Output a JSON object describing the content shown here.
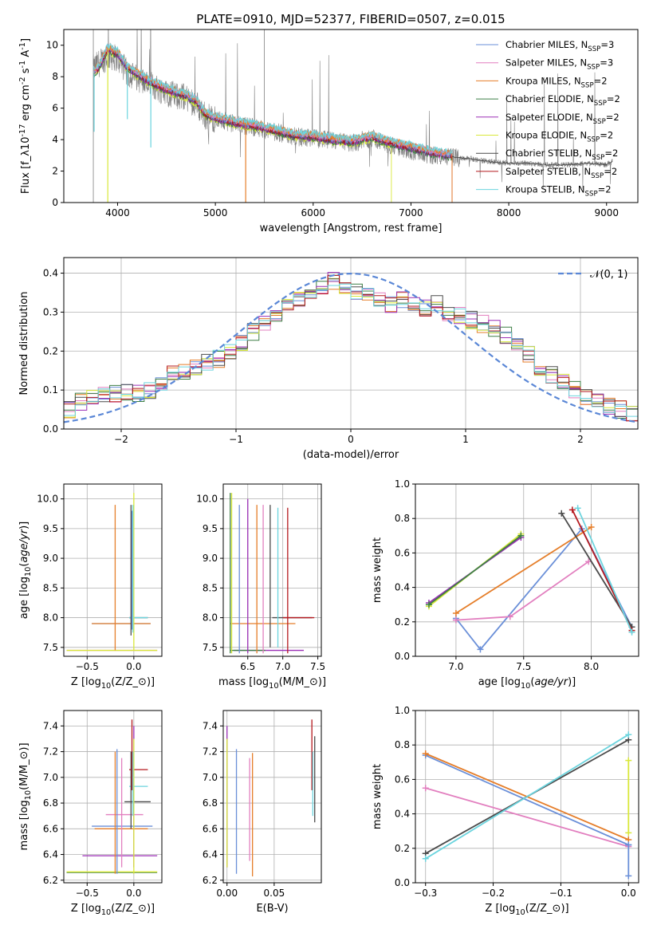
{
  "figure": {
    "title": "PLATE=0910, MJD=52377, FIBERID=0507, z=0.015"
  },
  "colors": {
    "chabrier_miles": "#6a8fd8",
    "salpeter_miles": "#e27fbf",
    "kroupa_miles": "#e57e2a",
    "chabrier_elodie": "#3e7f46",
    "salpeter_elodie": "#9b2fb6",
    "kroupa_elodie": "#d9e83a",
    "chabrier_stelib": "#4b4b4b",
    "salpeter_stelib": "#b5191e",
    "kroupa_stelib": "#6cd4de",
    "data": "#808080",
    "grid": "#b0b0b0"
  },
  "chart_data": [
    {
      "type": "line",
      "panel": "spectrum",
      "xlabel": "wavelength [Angstrom, rest frame]",
      "ylabel": "Flux [f$_\\lambda$10$^{-17}$ erg cm$^{-2}$ s$^{-1}$ A$^{-1}$]",
      "xlim": [
        3450,
        9320
      ],
      "ylim": [
        0,
        11
      ],
      "xticks": [
        4000,
        5000,
        6000,
        7000,
        8000,
        9000
      ],
      "yticks": [
        0,
        2,
        4,
        6,
        8,
        10
      ],
      "grid": false,
      "legend_position": "top-right",
      "legend": [
        {
          "label": "Chabrier MILES, N$_{SSP}$=3",
          "color": "#6a8fd8"
        },
        {
          "label": "Salpeter MILES, N$_{SSP}$=3",
          "color": "#e27fbf"
        },
        {
          "label": "Kroupa MILES, N$_{SSP}$=2",
          "color": "#e57e2a"
        },
        {
          "label": "Chabrier ELODIE, N$_{SSP}$=2",
          "color": "#3e7f46"
        },
        {
          "label": "Salpeter ELODIE, N$_{SSP}$=2",
          "color": "#9b2fb6"
        },
        {
          "label": "Kroupa ELODIE, N$_{SSP}$=2",
          "color": "#d9e83a"
        },
        {
          "label": "Chabrier STELIB, N$_{SSP}$=2",
          "color": "#4b4b4b"
        },
        {
          "label": "Salpeter STELIB, N$_{SSP}$=2",
          "color": "#b5191e"
        },
        {
          "label": "Kroupa STELIB, N$_{SSP}$=2",
          "color": "#6cd4de"
        }
      ],
      "data_continuum": {
        "x": [
          3750,
          3800,
          3900,
          4000,
          4100,
          4200,
          4300,
          4400,
          4500,
          4600,
          4700,
          4800,
          4900,
          5000,
          5200,
          5400,
          5600,
          5800,
          6000,
          6200,
          6400,
          6600,
          6800,
          7000,
          7200,
          7400,
          7600,
          7800,
          8000,
          8200,
          8400,
          8600,
          8800,
          9000,
          9060
        ],
        "y": [
          8.5,
          8.8,
          9.3,
          9.2,
          8.2,
          7.9,
          7.6,
          7.3,
          7.0,
          6.8,
          6.7,
          6.3,
          5.5,
          5.3,
          5.0,
          4.8,
          4.5,
          4.2,
          4.1,
          3.9,
          3.8,
          4.1,
          3.6,
          3.3,
          3.0,
          2.9,
          2.8,
          2.6,
          2.5,
          2.5,
          2.4,
          2.4,
          2.5,
          2.4,
          2.6
        ]
      },
      "model_continuum": {
        "x": [
          3750,
          3800,
          3900,
          4000,
          4100,
          4200,
          4300,
          4400,
          4500,
          4600,
          4700,
          4800,
          4900,
          5000,
          5200,
          5400,
          5600,
          5800,
          6000,
          6200,
          6400,
          6600,
          6800,
          7000,
          7200,
          7400
        ],
        "y": [
          8.3,
          8.5,
          9.8,
          9.5,
          8.6,
          8.2,
          7.8,
          7.5,
          7.2,
          7.0,
          6.8,
          6.5,
          5.6,
          5.4,
          5.1,
          4.9,
          4.6,
          4.3,
          4.2,
          4.0,
          3.9,
          4.2,
          3.8,
          3.5,
          3.2,
          3.0
        ]
      },
      "model_cutoffs": [
        {
          "series": "kroupa_miles",
          "x_end": 7420
        },
        {
          "series": "salpeter_stelib",
          "x_end": 7420
        },
        {
          "series": "kroupa_elodie",
          "x_end": 6800
        }
      ],
      "model_dips": [
        {
          "series": "kroupa_stelib",
          "x": 3760,
          "y": 4.5
        },
        {
          "series": "kroupa_stelib",
          "x": 4340,
          "y": 3.5
        },
        {
          "series": "kroupa_elodie",
          "x": 3900,
          "y": 0
        },
        {
          "series": "kroupa_miles",
          "x": 5310,
          "y": 0
        },
        {
          "series": "kroupa_stelib",
          "x": 4100,
          "y": 5.3
        }
      ]
    },
    {
      "type": "histogram",
      "panel": "residuals",
      "xlabel": "(data-model)/error",
      "ylabel": "Normed distribution",
      "xlim": [
        -2.5,
        2.5
      ],
      "ylim": [
        0,
        0.44
      ],
      "xticks": [
        -2,
        -1,
        0,
        1,
        2
      ],
      "yticks": [
        0.0,
        0.1,
        0.2,
        0.3,
        0.4
      ],
      "grid": true,
      "legend_position": "top-right",
      "legend": [
        {
          "label": "$\\mathcal{N}(0, 1)$",
          "color": "#5a87d6"
        }
      ],
      "bins": {
        "start": -2.5,
        "width": 0.1,
        "count": 50
      },
      "base_hist": [
        0.05,
        0.07,
        0.08,
        0.085,
        0.09,
        0.095,
        0.09,
        0.1,
        0.12,
        0.14,
        0.15,
        0.16,
        0.17,
        0.18,
        0.2,
        0.22,
        0.25,
        0.27,
        0.29,
        0.31,
        0.33,
        0.34,
        0.36,
        0.38,
        0.37,
        0.35,
        0.34,
        0.33,
        0.32,
        0.33,
        0.32,
        0.31,
        0.32,
        0.3,
        0.29,
        0.28,
        0.27,
        0.26,
        0.24,
        0.22,
        0.19,
        0.16,
        0.14,
        0.12,
        0.1,
        0.08,
        0.07,
        0.06,
        0.05,
        0.04
      ],
      "reference_curve": "gaussian N(0,1)"
    },
    {
      "type": "errorbar",
      "panel": "age-vs-Z",
      "xlabel": "Z [log$_{10}$($Z/Z_\\odot$)]",
      "ylabel": "age  [log$_{10}$($age/yr$)]",
      "xlim": [
        -0.75,
        0.3
      ],
      "ylim": [
        7.35,
        10.25
      ],
      "xticks": [
        -0.5,
        0.0
      ],
      "yticks": [
        7.5,
        8.0,
        8.5,
        9.0,
        9.5,
        10.0
      ],
      "grid": true,
      "hbars": [
        {
          "series": "chabrier_miles",
          "y": 7.9,
          "x0": -0.45,
          "x1": 0.18
        },
        {
          "series": "kroupa_miles",
          "y": 7.9,
          "x0": -0.45,
          "x1": 0.18
        },
        {
          "series": "salpeter_miles",
          "y": 7.45,
          "x0": -0.72,
          "x1": 0.25
        },
        {
          "series": "kroupa_elodie",
          "y": 7.45,
          "x0": -0.72,
          "x1": 0.25
        },
        {
          "series": "chabrier_stelib",
          "y": 8.0,
          "x0": -0.05,
          "x1": 0.15
        },
        {
          "series": "kroupa_stelib",
          "y": 8.0,
          "x0": -0.05,
          "x1": 0.15
        }
      ],
      "vbars": [
        {
          "series": "kroupa_miles",
          "x": -0.2,
          "y0": 7.45,
          "y1": 9.9
        },
        {
          "series": "chabrier_miles",
          "x": -0.02,
          "y0": 7.8,
          "y1": 9.8
        },
        {
          "series": "chabrier_stelib",
          "x": -0.03,
          "y0": 7.7,
          "y1": 9.9
        },
        {
          "series": "kroupa_elodie",
          "x": 0.0,
          "y0": 7.45,
          "y1": 10.1
        },
        {
          "series": "kroupa_stelib",
          "x": -0.01,
          "y0": 7.75,
          "y1": 9.9
        }
      ]
    },
    {
      "type": "errorbar",
      "panel": "age-vs-mass",
      "xlabel": "mass [log$_{10}$($M/M_\\odot$)]",
      "ylabel": "",
      "xlim": [
        6.15,
        7.55
      ],
      "ylim": [
        7.35,
        10.25
      ],
      "xticks": [
        6.5,
        7.0,
        7.5
      ],
      "yticks": [
        7.5,
        8.0,
        8.5,
        9.0,
        9.5,
        10.0
      ],
      "grid": true,
      "hbars": [
        {
          "series": "kroupa_miles",
          "y": 7.9,
          "x0": 6.25,
          "x1": 7.18
        },
        {
          "series": "chabrier_stelib",
          "y": 8.0,
          "x0": 6.85,
          "x1": 7.42
        },
        {
          "series": "salpeter_stelib",
          "y": 8.0,
          "x0": 7.0,
          "x1": 7.45
        },
        {
          "series": "salpeter_elodie",
          "y": 7.45,
          "x0": 6.3,
          "x1": 7.3
        },
        {
          "series": "chabrier_elodie",
          "y": 7.45,
          "x0": 6.25,
          "x1": 6.75
        }
      ],
      "vbars": [
        {
          "series": "chabrier_elodie",
          "x": 6.25,
          "y0": 7.4,
          "y1": 10.1
        },
        {
          "series": "kroupa_elodie",
          "x": 6.27,
          "y0": 7.4,
          "y1": 10.1
        },
        {
          "series": "chabrier_miles",
          "x": 6.38,
          "y0": 7.4,
          "y1": 9.9
        },
        {
          "series": "salpeter_elodie",
          "x": 6.5,
          "y0": 7.4,
          "y1": 10.0
        },
        {
          "series": "kroupa_miles",
          "x": 6.63,
          "y0": 7.4,
          "y1": 9.9
        },
        {
          "series": "salpeter_miles",
          "x": 6.72,
          "y0": 7.4,
          "y1": 9.9
        },
        {
          "series": "chabrier_stelib",
          "x": 6.82,
          "y0": 7.5,
          "y1": 9.9
        },
        {
          "series": "kroupa_stelib",
          "x": 6.93,
          "y0": 7.5,
          "y1": 9.85
        },
        {
          "series": "salpeter_stelib",
          "x": 7.07,
          "y0": 7.4,
          "y1": 9.85
        }
      ]
    },
    {
      "type": "line",
      "panel": "weight-vs-age",
      "xlabel": "age  [log$_{10}$($age/yr$)]",
      "ylabel": "mass weight",
      "xlim": [
        6.7,
        8.35
      ],
      "ylim": [
        0,
        1.0
      ],
      "xticks": [
        7.0,
        7.5,
        8.0
      ],
      "yticks": [
        0.0,
        0.2,
        0.4,
        0.6,
        0.8,
        1.0
      ],
      "grid": true,
      "series": [
        {
          "name": "chabrier_miles",
          "x": [
            7.0,
            7.18,
            7.93,
            8.3
          ],
          "y": [
            0.22,
            0.04,
            0.74,
            0.17
          ]
        },
        {
          "name": "salpeter_miles",
          "x": [
            7.0,
            7.4,
            7.98
          ],
          "y": [
            0.21,
            0.23,
            0.55
          ]
        },
        {
          "name": "kroupa_miles",
          "x": [
            7.0,
            8.0
          ],
          "y": [
            0.25,
            0.75
          ]
        },
        {
          "name": "salpeter_elodie",
          "x": [
            6.8,
            7.48
          ],
          "y": [
            0.31,
            0.69
          ]
        },
        {
          "name": "kroupa_elodie",
          "x": [
            6.8,
            7.48
          ],
          "y": [
            0.29,
            0.71
          ]
        },
        {
          "name": "chabrier_stelib",
          "x": [
            7.78,
            8.3
          ],
          "y": [
            0.83,
            0.17
          ]
        },
        {
          "name": "salpeter_stelib",
          "x": [
            7.86,
            8.3
          ],
          "y": [
            0.85,
            0.15
          ]
        },
        {
          "name": "kroupa_stelib",
          "x": [
            7.9,
            8.3
          ],
          "y": [
            0.86,
            0.14
          ]
        },
        {
          "name": "chabrier_elodie",
          "x": [
            6.8,
            7.48
          ],
          "y": [
            0.3,
            0.7
          ]
        }
      ]
    },
    {
      "type": "errorbar",
      "panel": "mass-vs-Z",
      "xlabel": "Z [log$_{10}$($Z/Z_\\odot$)]",
      "ylabel": "mass [log$_{10}$($M/M_\\odot$)]",
      "xlim": [
        -0.75,
        0.3
      ],
      "ylim": [
        6.18,
        7.52
      ],
      "xticks": [
        -0.5,
        0.0
      ],
      "yticks": [
        6.2,
        6.4,
        6.6,
        6.8,
        7.0,
        7.2,
        7.4
      ],
      "grid": true,
      "hbars": [
        {
          "series": "chabrier_miles",
          "y": 6.62,
          "x0": -0.45,
          "x1": 0.2
        },
        {
          "series": "kroupa_miles",
          "y": 6.6,
          "x0": -0.42,
          "x1": 0.15
        },
        {
          "series": "salpeter_miles",
          "y": 6.71,
          "x0": -0.3,
          "x1": 0.1
        },
        {
          "series": "chabrier_stelib",
          "y": 6.81,
          "x0": -0.1,
          "x1": 0.18
        },
        {
          "series": "kroupa_stelib",
          "y": 6.93,
          "x0": -0.05,
          "x1": 0.15
        },
        {
          "series": "salpeter_stelib",
          "y": 7.06,
          "x0": -0.05,
          "x1": 0.15
        },
        {
          "series": "salpeter_elodie",
          "y": 6.39,
          "x0": -0.55,
          "x1": 0.25
        },
        {
          "series": "chabrier_elodie",
          "y": 6.26,
          "x0": -0.72,
          "x1": 0.25
        },
        {
          "series": "kroupa_elodie",
          "y": 6.265,
          "x0": -0.72,
          "x1": 0.25
        }
      ],
      "vbars": [
        {
          "series": "chabrier_miles",
          "x": -0.18,
          "y0": 6.25,
          "y1": 7.22
        },
        {
          "series": "kroupa_miles",
          "x": -0.2,
          "y0": 6.25,
          "y1": 7.2
        },
        {
          "series": "salpeter_miles",
          "x": -0.13,
          "y0": 6.3,
          "y1": 7.15
        },
        {
          "series": "chabrier_stelib",
          "x": -0.03,
          "y0": 6.6,
          "y1": 7.2
        },
        {
          "series": "salpeter_stelib",
          "x": -0.02,
          "y0": 6.9,
          "y1": 7.45
        },
        {
          "series": "salpeter_elodie",
          "x": 0.0,
          "y0": 6.3,
          "y1": 7.4
        },
        {
          "series": "kroupa_elodie",
          "x": 0.0,
          "y0": 6.25,
          "y1": 7.3
        },
        {
          "series": "kroupa_stelib",
          "x": -0.01,
          "y0": 6.7,
          "y1": 7.2
        }
      ]
    },
    {
      "type": "errorbar",
      "panel": "mass-vs-EBV",
      "xlabel": "E(B-V)",
      "ylabel": "",
      "xlim": [
        -0.004,
        0.1
      ],
      "ylim": [
        6.18,
        7.52
      ],
      "xticks": [
        0.0,
        0.05
      ],
      "xticklabels": [
        "0.00",
        "0.05"
      ],
      "yticks": [
        6.2,
        6.4,
        6.6,
        6.8,
        7.0,
        7.2,
        7.4
      ],
      "grid": true,
      "vbars": [
        {
          "series": "salpeter_elodie",
          "x": 0.0,
          "y0": 6.3,
          "y1": 7.4
        },
        {
          "series": "kroupa_elodie",
          "x": 0.0,
          "y0": 6.3,
          "y1": 7.3
        },
        {
          "series": "chabrier_miles",
          "x": 0.01,
          "y0": 6.25,
          "y1": 7.22
        },
        {
          "series": "kroupa_miles",
          "x": 0.027,
          "y0": 6.23,
          "y1": 7.19
        },
        {
          "series": "salpeter_miles",
          "x": 0.024,
          "y0": 6.35,
          "y1": 7.15
        },
        {
          "series": "salpeter_stelib",
          "x": 0.09,
          "y0": 6.9,
          "y1": 7.45
        },
        {
          "series": "chabrier_stelib",
          "x": 0.093,
          "y0": 6.65,
          "y1": 7.32
        },
        {
          "series": "kroupa_stelib",
          "x": 0.091,
          "y0": 6.7,
          "y1": 7.2
        }
      ]
    },
    {
      "type": "line",
      "panel": "weight-vs-Z",
      "xlabel": "Z [log$_{10}$($Z/Z_\\odot$)]",
      "ylabel": "mass weight",
      "xlim": [
        -0.315,
        0.015
      ],
      "ylim": [
        0,
        1.0
      ],
      "xticks": [
        -0.3,
        -0.2,
        -0.1,
        0.0
      ],
      "yticks": [
        0.0,
        0.2,
        0.4,
        0.6,
        0.8,
        1.0
      ],
      "grid": true,
      "series": [
        {
          "name": "chabrier_miles",
          "x": [
            -0.3,
            0.0
          ],
          "y": [
            0.74,
            0.22
          ]
        },
        {
          "name": "kroupa_miles",
          "x": [
            -0.3,
            0.0
          ],
          "y": [
            0.75,
            0.25
          ]
        },
        {
          "name": "salpeter_miles",
          "x": [
            -0.3,
            0.0
          ],
          "y": [
            0.55,
            0.21
          ]
        },
        {
          "name": "chabrier_stelib",
          "x": [
            -0.3,
            0.0
          ],
          "y": [
            0.17,
            0.83
          ]
        },
        {
          "name": "kroupa_stelib",
          "x": [
            -0.3,
            0.0
          ],
          "y": [
            0.14,
            0.86
          ]
        },
        {
          "name": "kroupa_elodie",
          "x": [
            0.0,
            0.0
          ],
          "y": [
            0.29,
            0.71
          ]
        },
        {
          "name": "chabrier_miles_b",
          "x": [
            0.0,
            0.0
          ],
          "y": [
            0.04,
            0.22
          ]
        }
      ]
    }
  ]
}
